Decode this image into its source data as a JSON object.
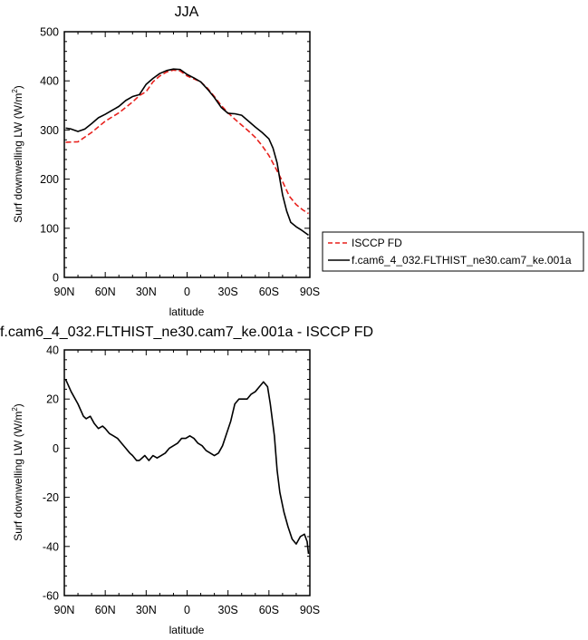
{
  "chart_data": [
    {
      "type": "line",
      "title": "JJA",
      "xlabel": "latitude",
      "ylabel": "Surf downwelling LW (W/m",
      "ylabel_sup": "2",
      "ylabel_close": ")",
      "xlim": [
        90,
        -90
      ],
      "ylim": [
        0,
        500
      ],
      "x_ticks": [
        90,
        60,
        30,
        0,
        -30,
        -60,
        -90
      ],
      "x_tick_labels": [
        "90N",
        "60N",
        "30N",
        "0",
        "30S",
        "60S",
        "90S"
      ],
      "y_ticks": [
        0,
        100,
        200,
        300,
        400,
        500
      ],
      "y_tick_labels": [
        "0",
        "100",
        "200",
        "300",
        "400",
        "500"
      ],
      "legend_position": "outside-right",
      "series": [
        {
          "name": "ISCCP FD",
          "color": "#e8201c",
          "dash": "dashed",
          "x": [
            89,
            80,
            70,
            60,
            50,
            40,
            35,
            30,
            25,
            20,
            15,
            10,
            5,
            0,
            -5,
            -10,
            -15,
            -20,
            -25,
            -30,
            -35,
            -40,
            -45,
            -50,
            -55,
            -60,
            -65,
            -70,
            -75,
            -80,
            -85,
            -89
          ],
          "y": [
            275,
            276,
            295,
            318,
            335,
            357,
            370,
            378,
            398,
            410,
            418,
            422,
            420,
            410,
            404,
            398,
            385,
            368,
            350,
            335,
            322,
            310,
            298,
            285,
            268,
            248,
            222,
            195,
            165,
            148,
            137,
            130
          ]
        },
        {
          "name": "f.cam6_4_032.FLTHIST_ne30.cam7_ke.001a",
          "color": "#000000",
          "dash": "solid",
          "x": [
            89,
            85,
            80,
            75,
            70,
            65,
            60,
            55,
            50,
            45,
            40,
            35,
            30,
            25,
            20,
            15,
            10,
            5,
            0,
            -5,
            -10,
            -15,
            -20,
            -25,
            -30,
            -35,
            -40,
            -45,
            -50,
            -55,
            -60,
            -63,
            -66,
            -68,
            -70,
            -73,
            -76,
            -80,
            -84,
            -89
          ],
          "y": [
            304,
            302,
            297,
            302,
            313,
            325,
            332,
            340,
            348,
            360,
            368,
            372,
            393,
            405,
            415,
            421,
            424,
            423,
            413,
            406,
            398,
            383,
            366,
            346,
            334,
            333,
            330,
            318,
            306,
            295,
            282,
            263,
            233,
            200,
            168,
            135,
            112,
            103,
            96,
            86
          ]
        }
      ]
    },
    {
      "type": "line",
      "title": "f.cam6_4_032.FLTHIST_ne30.cam7_ke.001a - ISCCP FD",
      "xlabel": "latitude",
      "ylabel": "Surf downwelling LW (W/m",
      "ylabel_sup": "2",
      "ylabel_close": ")",
      "xlim": [
        90,
        -90
      ],
      "ylim": [
        -60,
        40
      ],
      "x_ticks": [
        90,
        60,
        30,
        0,
        -30,
        -60,
        -90
      ],
      "x_tick_labels": [
        "90N",
        "60N",
        "30N",
        "0",
        "30S",
        "60S",
        "90S"
      ],
      "y_ticks": [
        -60,
        -40,
        -20,
        0,
        20,
        40
      ],
      "y_tick_labels": [
        "-60",
        "-40",
        "-20",
        "0",
        "20",
        "40"
      ],
      "series": [
        {
          "color": "#000000",
          "dash": "solid",
          "x": [
            89,
            85,
            80,
            76,
            74,
            71,
            68,
            65,
            62,
            60,
            57,
            54,
            51,
            48,
            45,
            42,
            40,
            37,
            35,
            33,
            31,
            28,
            25,
            22,
            19,
            16,
            13,
            10,
            7,
            4,
            1,
            -2,
            -5,
            -8,
            -11,
            -14,
            -17,
            -20,
            -23,
            -26,
            -29,
            -32,
            -35,
            -38,
            -41,
            -44,
            -47,
            -50,
            -53,
            -56,
            -59,
            -61,
            -64,
            -66,
            -68,
            -71,
            -74,
            -77,
            -80,
            -83,
            -86,
            -88,
            -89
          ],
          "y": [
            28,
            23,
            18,
            13,
            12,
            13,
            10,
            8,
            9,
            8,
            6,
            5,
            4,
            2,
            0,
            -2,
            -3,
            -5,
            -5,
            -4,
            -3,
            -5,
            -3,
            -4,
            -3,
            -2,
            0,
            1,
            2,
            4,
            4,
            5,
            4,
            2,
            1,
            -1,
            -2,
            -3,
            -2,
            1,
            6,
            11,
            18,
            20,
            20,
            20,
            22,
            23,
            25,
            27,
            25,
            18,
            5,
            -9,
            -18,
            -26,
            -32,
            -37,
            -39,
            -36,
            -35,
            -38,
            -43
          ]
        }
      ]
    }
  ]
}
